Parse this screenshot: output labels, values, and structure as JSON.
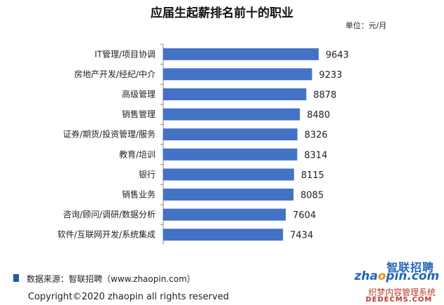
{
  "chart_data": {
    "type": "bar",
    "orientation": "horizontal",
    "title": "应届生起薪排名前十的职业",
    "unit_label": "单位：元/月",
    "categories": [
      "IT管理/项目协调",
      "房地产开发/经纪/中介",
      "高级管理",
      "销售管理",
      "证券/期货/投资管理/服务",
      "教育/培训",
      "银行",
      "销售业务",
      "咨询/顾问/调研/数据分析",
      "软件/互联网开发/系统集成"
    ],
    "values": [
      9643,
      9233,
      8878,
      8480,
      8326,
      8314,
      8115,
      8085,
      7604,
      7434
    ],
    "value_labels": [
      "9643",
      "9233",
      "8878",
      "8480",
      "8326",
      "8314",
      "8115",
      "8085",
      "7604",
      "7434"
    ],
    "bar_color": "#4472c4",
    "xlim": [
      0,
      9643
    ],
    "grid": false,
    "legend": "none"
  },
  "footer": {
    "source": "数据来源：智联招聘（www.zhaopin.com）",
    "copyright": "Copyright©2020  zhaopin all rights reserved"
  },
  "logo": {
    "cn_text": "智联招聘",
    "en_text_a": "zha",
    "en_text_o": "o",
    "en_text_b": "pin.com"
  },
  "watermark": {
    "line1": "织梦内容管理系统",
    "line2": "DEDECMS.COM"
  },
  "colors": {
    "accent": "#1f5aa6",
    "logo_orange": "#f29100",
    "watermark_red": "#c0392b"
  }
}
